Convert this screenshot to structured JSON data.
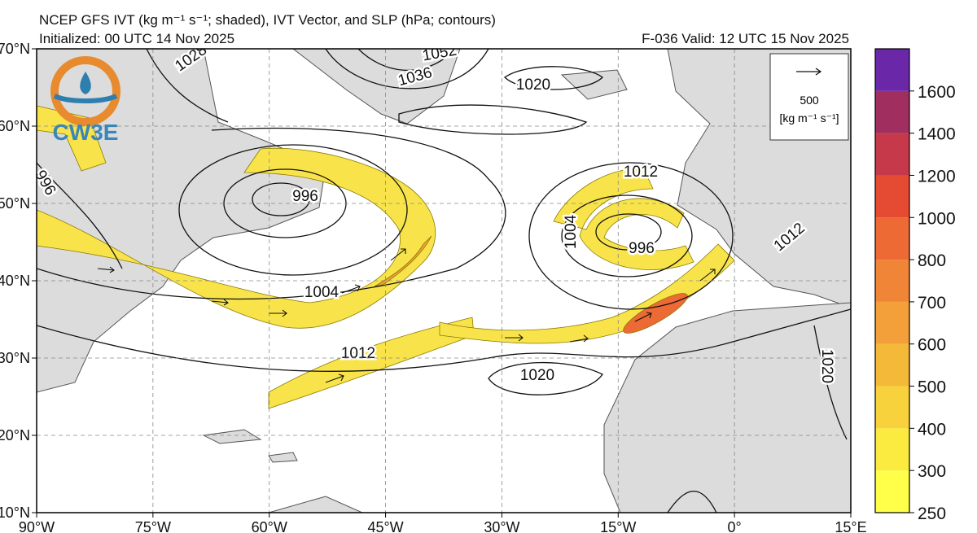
{
  "header": {
    "title": "NCEP GFS IVT (kg m⁻¹ s⁻¹; shaded), IVT Vector, and SLP (hPa; contours)",
    "initialized": "Initialized: 00 UTC 14 Nov 2025",
    "valid": "F-036  Valid: 12 UTC 15 Nov 2025",
    "logo": "CW3E"
  },
  "map": {
    "lon_ticks": [
      {
        "value": -90,
        "label": "90°W"
      },
      {
        "value": -75,
        "label": "75°W"
      },
      {
        "value": -60,
        "label": "60°W"
      },
      {
        "value": -45,
        "label": "45°W"
      },
      {
        "value": -30,
        "label": "30°W"
      },
      {
        "value": -15,
        "label": "15°W"
      },
      {
        "value": 0,
        "label": "0°"
      },
      {
        "value": 15,
        "label": "15°E"
      }
    ],
    "lat_ticks": [
      {
        "value": 10,
        "label": "10°N"
      },
      {
        "value": 20,
        "label": "20°N"
      },
      {
        "value": 30,
        "label": "30°N"
      },
      {
        "value": 40,
        "label": "40°N"
      },
      {
        "value": 50,
        "label": "50°N"
      },
      {
        "value": 60,
        "label": "60°N"
      },
      {
        "value": 70,
        "label": "70°N"
      }
    ],
    "lon_range": [
      -90,
      15
    ],
    "lat_range": [
      10,
      70
    ],
    "slp_contour_labels": [
      1028,
      1052,
      1036,
      1020,
      996,
      996,
      1004,
      1004,
      1012,
      1012,
      1012,
      1020,
      1020,
      996
    ]
  },
  "vector_key": {
    "magnitude": 500,
    "units": "[kg m⁻¹ s⁻¹]"
  },
  "colorbar": {
    "levels": [
      250,
      300,
      400,
      500,
      600,
      700,
      800,
      1000,
      1200,
      1400,
      1600
    ],
    "colors": [
      "#ffff4a",
      "#fbea40",
      "#f8d23c",
      "#f5b93a",
      "#f3a03a",
      "#f08538",
      "#ed6a35",
      "#e54a32",
      "#c6394a",
      "#a02f60",
      "#6a28a8"
    ]
  }
}
